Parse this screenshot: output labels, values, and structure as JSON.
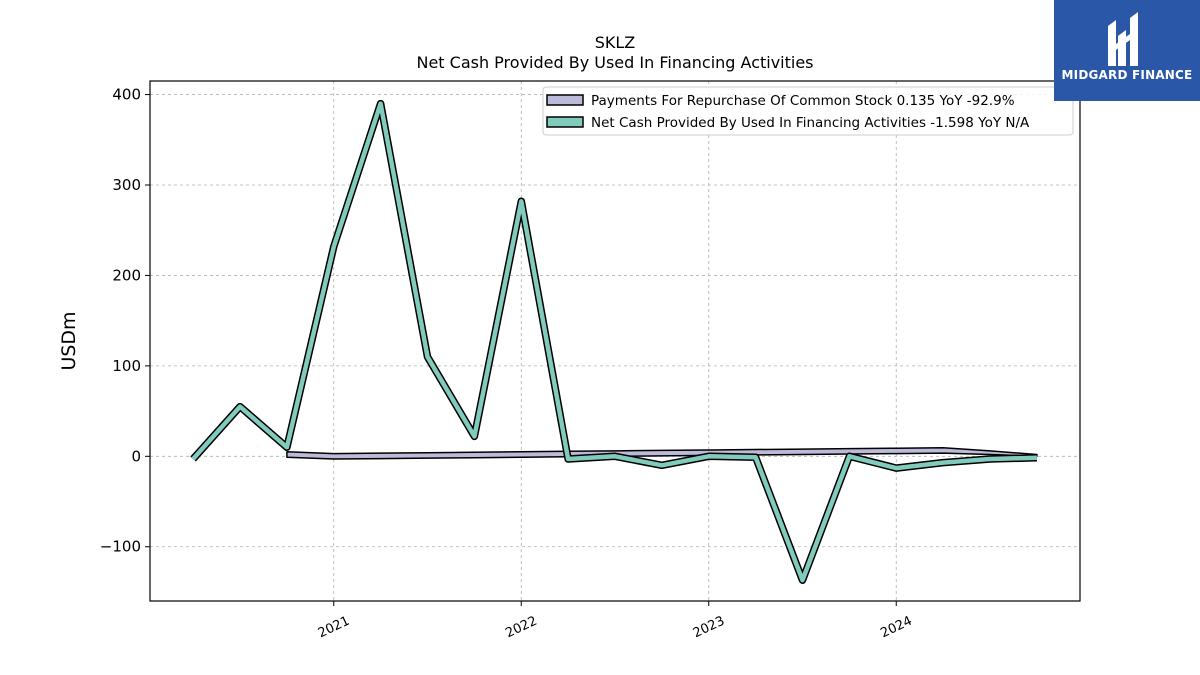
{
  "chart_data": {
    "type": "line",
    "title": "SKLZ",
    "subtitle": "Net Cash Provided By Used In Financing Activities",
    "ylabel": "USDm",
    "xlabel": "",
    "ylim": [
      -160,
      415
    ],
    "xlim": [
      2020.02,
      2024.98
    ],
    "yticks": [
      -100,
      0,
      100,
      200,
      300,
      400
    ],
    "yticklabels": [
      "−100",
      "0",
      "100",
      "200",
      "300",
      "400"
    ],
    "xticks": [
      2021,
      2022,
      2023,
      2024
    ],
    "xticklabels": [
      "2021",
      "2022",
      "2023",
      "2024"
    ],
    "grid": true,
    "legend_position": "top-right",
    "series": [
      {
        "name": "Payments For Repurchase Of Common Stock  0.135 YoY -92.9%",
        "kind": "area",
        "color": "#bcbad9",
        "x": [
          2020.75,
          2021.0,
          2021.25,
          2021.5,
          2021.75,
          2022.0,
          2022.25,
          2022.5,
          2022.75,
          2023.0,
          2023.25,
          2023.5,
          2023.75,
          2024.0,
          2024.25,
          2024.5,
          2024.75
        ],
        "upper": [
          5,
          3,
          3.5,
          4,
          4.5,
          5,
          5.5,
          6,
          6.5,
          7,
          7.5,
          8,
          8.5,
          9,
          9.5,
          6,
          2
        ],
        "lower": [
          -1,
          -3,
          -2.5,
          -2,
          -1.5,
          -1,
          -0.5,
          0,
          0.5,
          1,
          1.5,
          2,
          2.5,
          3,
          3.5,
          2,
          0
        ]
      },
      {
        "name": "Net Cash Provided By Used In Financing Activities  -1.598 YoY N/A",
        "kind": "line",
        "color": "#80cbbc",
        "x": [
          2020.25,
          2020.5,
          2020.75,
          2021.0,
          2021.25,
          2021.5,
          2021.75,
          2022.0,
          2022.25,
          2022.5,
          2022.75,
          2023.0,
          2023.25,
          2023.5,
          2023.75,
          2024.0,
          2024.25,
          2024.5,
          2024.75
        ],
        "values": [
          -3,
          55,
          10,
          232,
          390,
          110,
          22,
          282,
          -3,
          0,
          -10,
          0,
          -1,
          -137,
          0,
          -13,
          -7,
          -3,
          -1.6
        ]
      }
    ]
  },
  "brand": {
    "name": "MIDGARD FINANCE",
    "color": "#2b57a9"
  }
}
